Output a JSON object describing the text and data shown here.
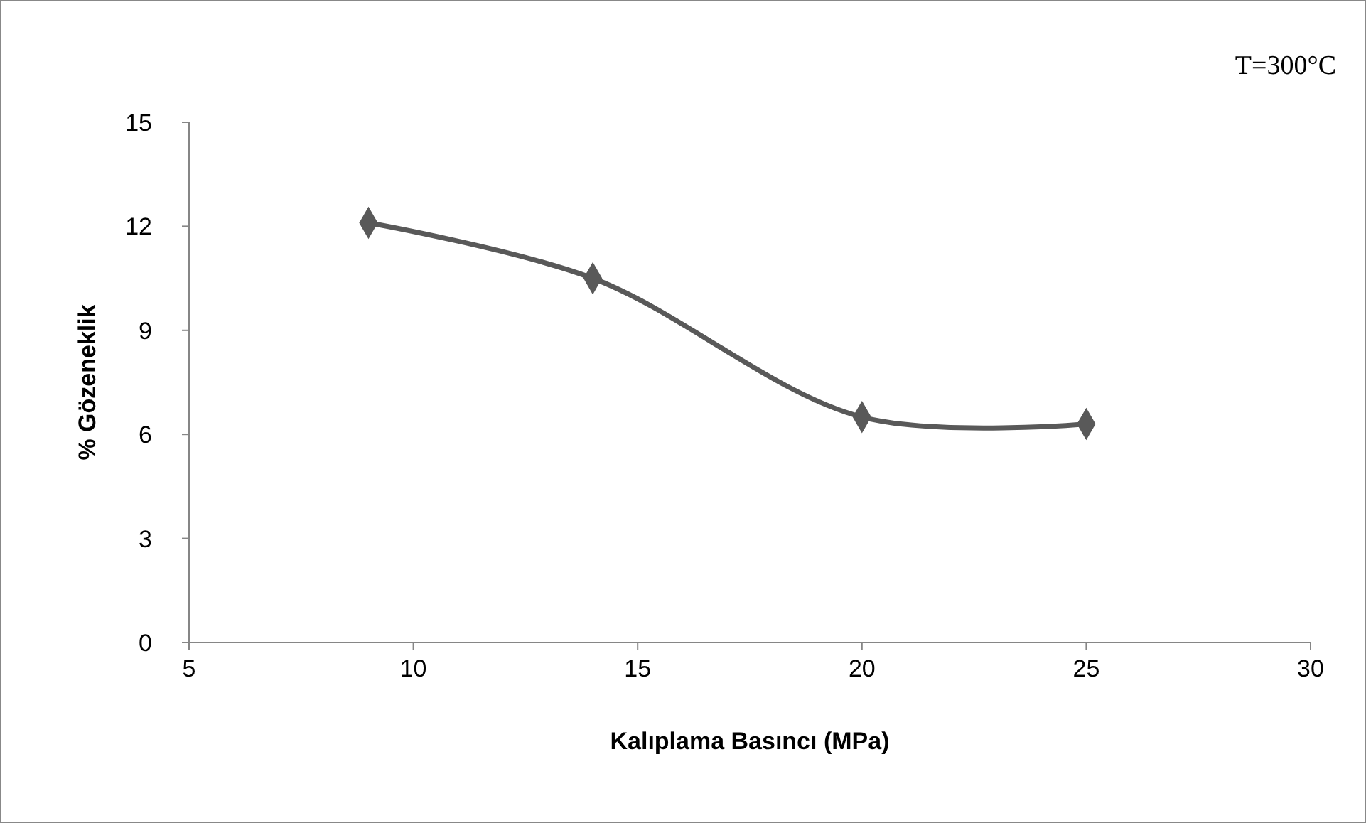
{
  "chart_data": {
    "type": "line",
    "xlabel": "Kalıplama Basıncı (MPa)",
    "ylabel": "% Gözeneklik",
    "annotations": [
      "T=300°C"
    ],
    "x": [
      9,
      14,
      20,
      25
    ],
    "series": [
      {
        "color": "#595959",
        "values": [
          12.1,
          10.5,
          6.5,
          6.3
        ]
      }
    ],
    "xlim": [
      5,
      30
    ],
    "xticks": [
      5,
      10,
      15,
      20,
      25,
      30
    ],
    "ylim": [
      0,
      15
    ],
    "yticks": [
      0,
      3,
      6,
      9,
      12,
      15
    ],
    "grid": false,
    "marker": "diamond",
    "line_style": "solid"
  }
}
